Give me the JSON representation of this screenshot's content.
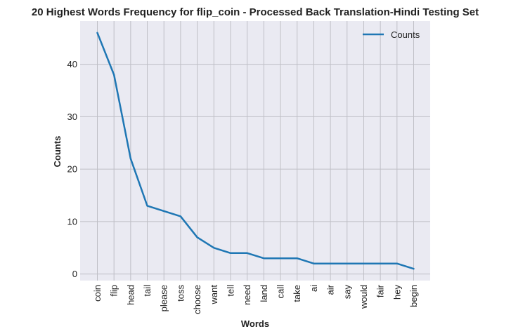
{
  "chart_data": {
    "type": "line",
    "title": "20 Highest Words Frequency for flip_coin - Processed Back Translation-Hindi Testing Set",
    "xlabel": "Words",
    "ylabel": "Counts",
    "categories": [
      "coin",
      "flip",
      "head",
      "tail",
      "please",
      "toss",
      "choose",
      "want",
      "tell",
      "need",
      "land",
      "call",
      "take",
      "ai",
      "air",
      "say",
      "would",
      "fair",
      "hey",
      "begin"
    ],
    "series": [
      {
        "name": "Counts",
        "color": "#1f77b4",
        "values": [
          46,
          38,
          22,
          13,
          12,
          11,
          7,
          5,
          4,
          4,
          3,
          3,
          3,
          2,
          2,
          2,
          2,
          2,
          2,
          1
        ]
      }
    ],
    "ylim": [
      -1.25,
      48.25
    ],
    "yticks": [
      0,
      10,
      20,
      30,
      40
    ],
    "grid": true,
    "legend_position": "top-right",
    "background": "#eaeaf2",
    "grid_color": "#bfbfc6"
  }
}
